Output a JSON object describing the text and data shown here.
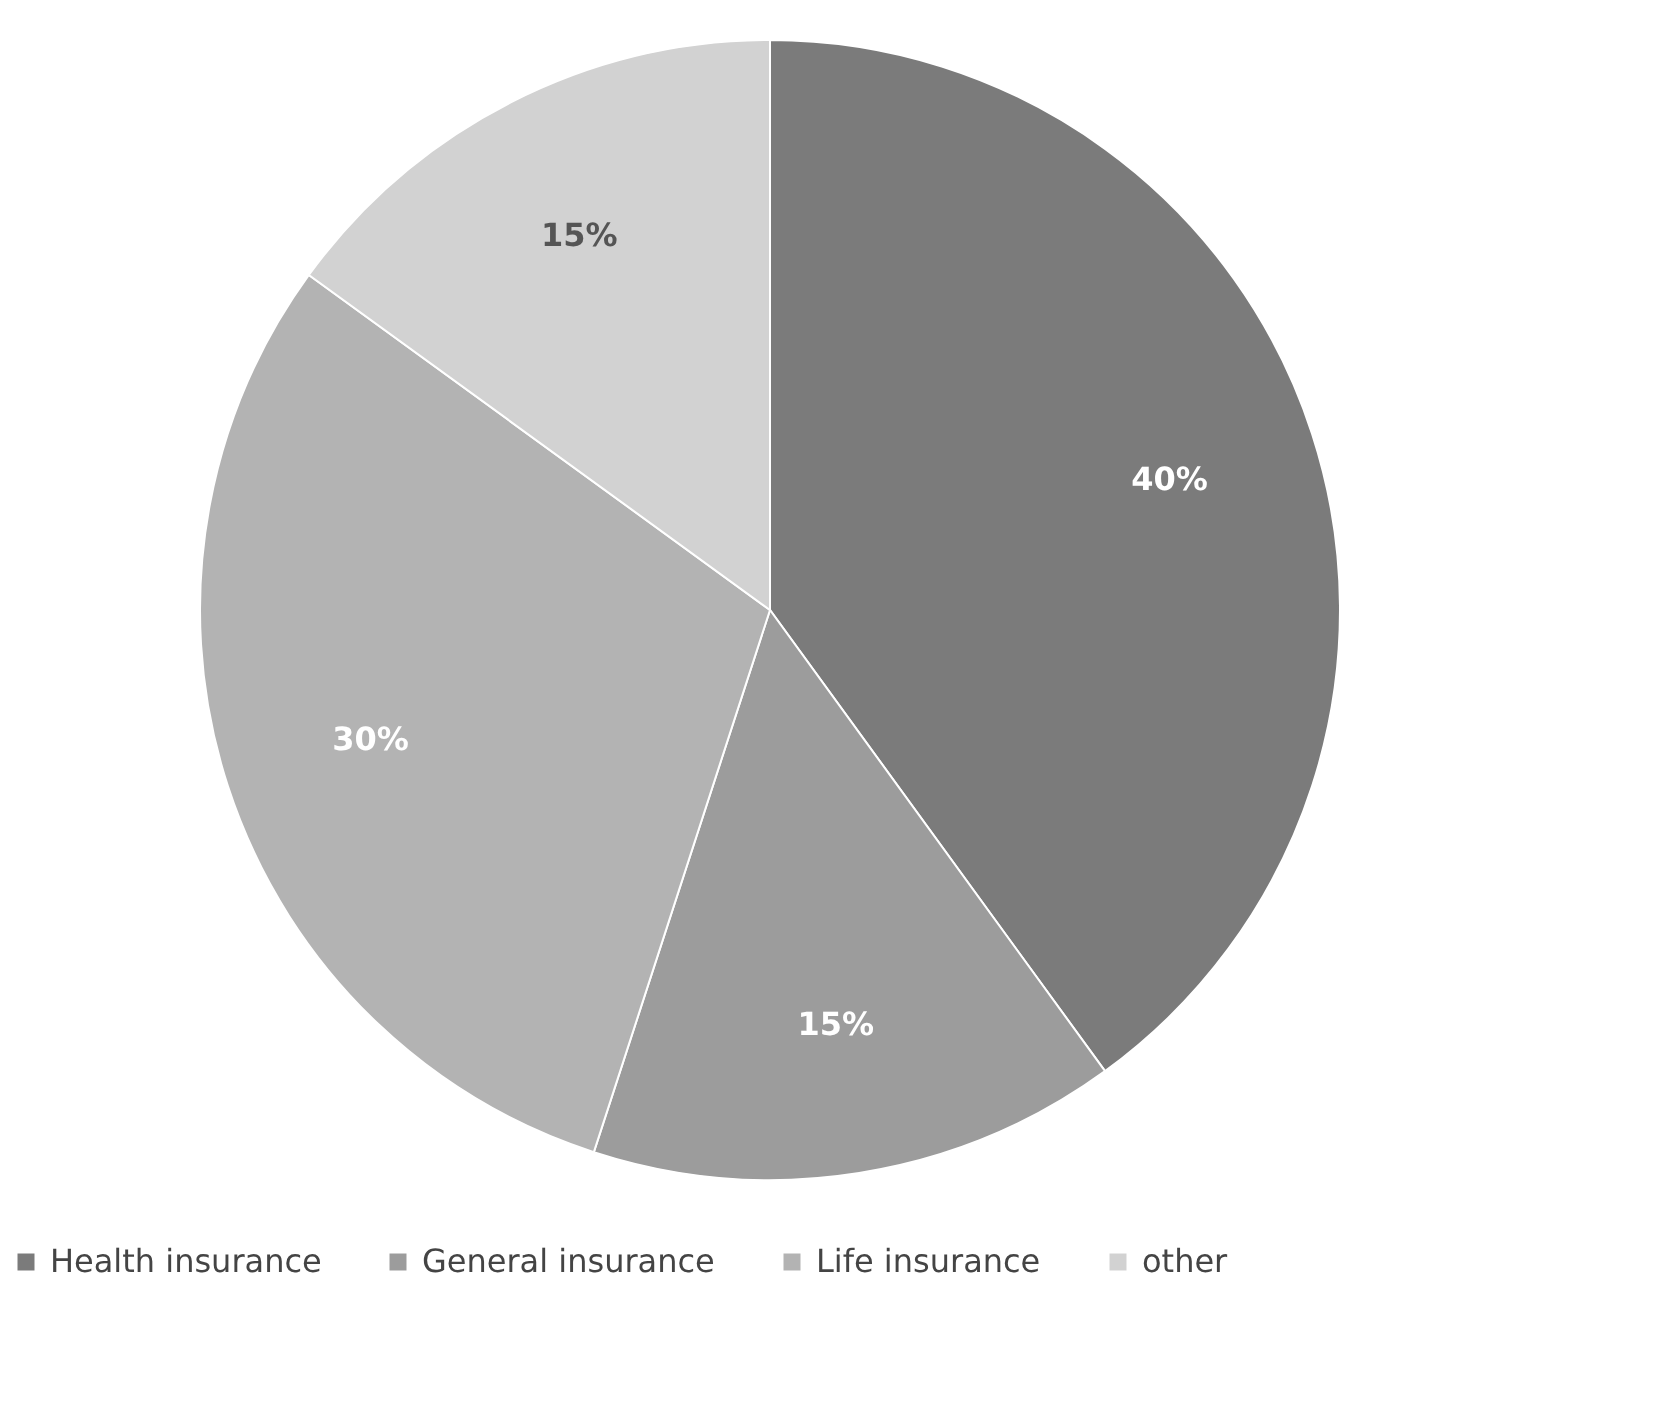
{
  "chart_data": {
    "type": "pie",
    "categories": [
      "Health insurance",
      "General insurance",
      "Life insurance",
      "other"
    ],
    "values": [
      40,
      15,
      30,
      15
    ],
    "colors": [
      "#7b7b7b",
      "#9c9c9c",
      "#b3b3b3",
      "#d2d2d2"
    ],
    "value_labels": [
      "40%",
      "15%",
      "30%",
      "15%"
    ],
    "legend": "bottom"
  }
}
